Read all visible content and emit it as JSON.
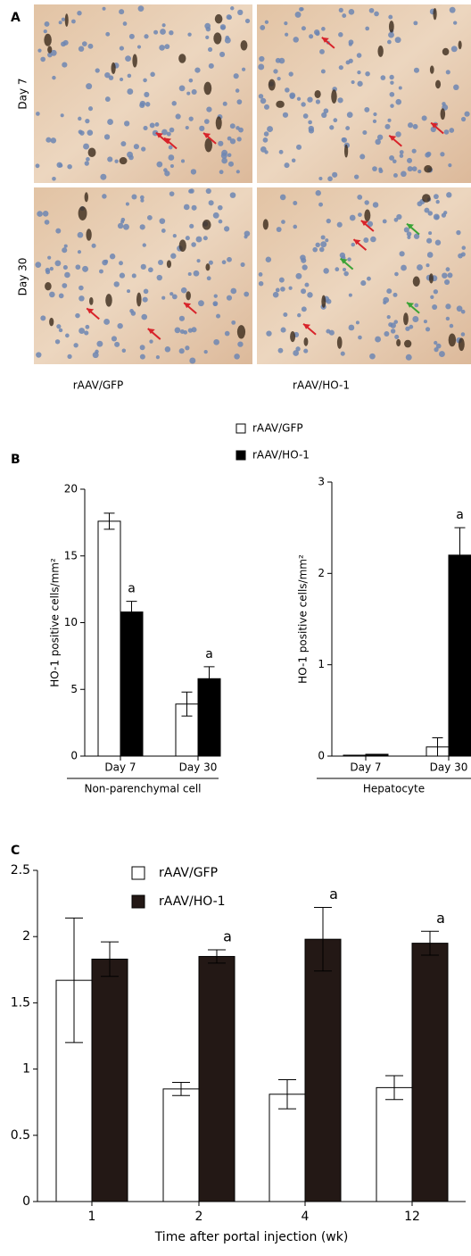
{
  "panel_a": {
    "label": "A",
    "rows": [
      "Day 7",
      "Day 30"
    ],
    "columns": [
      "rAAV/GFP",
      "rAAV/HO-1"
    ]
  },
  "chart_data": [
    {
      "type": "bar",
      "label": "B",
      "ylabel": "HO-1 positive cells/mm²",
      "categories": [
        "Day 7",
        "Day 30"
      ],
      "group_title": "Non-parenchymal cell",
      "series": [
        {
          "name": "rAAV/GFP",
          "color": "#ffffff",
          "values": [
            17.6,
            3.9
          ],
          "errors": [
            0.6,
            0.9
          ]
        },
        {
          "name": "rAAV/HO-1",
          "color": "#000000",
          "values": [
            10.8,
            5.8
          ],
          "errors": [
            0.8,
            0.9
          ],
          "annotations": [
            "a",
            "a"
          ]
        }
      ],
      "ylim": [
        0,
        20
      ],
      "yticks": [
        0,
        5,
        10,
        15,
        20
      ]
    },
    {
      "type": "bar",
      "ylabel": "HO-1 positive cells/mm²",
      "categories": [
        "Day 7",
        "Day 30"
      ],
      "group_title": "Hepatocyte",
      "series": [
        {
          "color": "#ffffff",
          "values": [
            0.01,
            0.1
          ],
          "errors": [
            0,
            0.1
          ]
        },
        {
          "color": "#000000",
          "values": [
            0.02,
            2.2
          ],
          "errors": [
            0,
            0.3
          ],
          "annotations": [
            null,
            "a"
          ]
        }
      ],
      "ylim": [
        0,
        3
      ],
      "yticks": [
        0,
        1,
        2,
        3
      ]
    },
    {
      "type": "bar",
      "label": "C",
      "xlabel": "Time after portal injection (wk)",
      "categories": [
        "1",
        "2",
        "4",
        "12"
      ],
      "series": [
        {
          "name": "rAAV/GFP",
          "color": "#ffffff",
          "values": [
            1.67,
            0.85,
            0.81,
            0.86
          ],
          "errors": [
            0.47,
            0.05,
            0.11,
            0.09
          ]
        },
        {
          "name": "rAAV/HO-1",
          "color": "#231815",
          "values": [
            1.83,
            1.85,
            1.98,
            1.95
          ],
          "errors": [
            0.13,
            0.05,
            0.24,
            0.09
          ],
          "annotations": [
            null,
            "a",
            "a",
            "a"
          ]
        }
      ],
      "ylim": [
        0,
        2.5
      ],
      "yticks": [
        0,
        0.5,
        1,
        1.5,
        2,
        2.5
      ]
    }
  ]
}
